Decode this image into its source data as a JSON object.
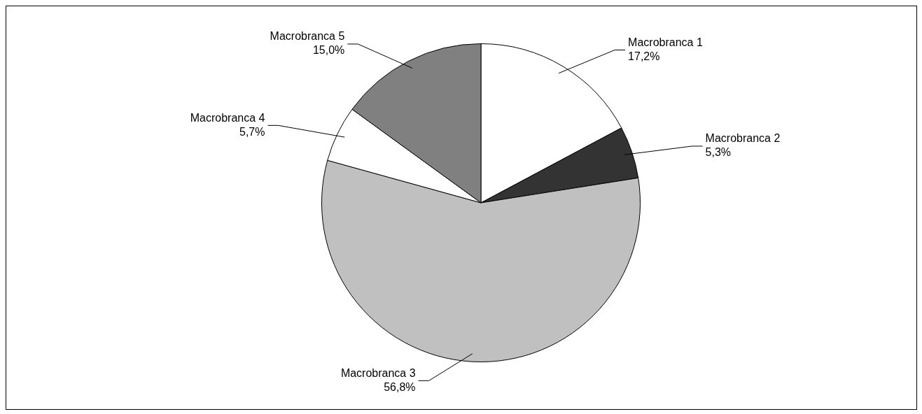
{
  "chart_data": {
    "type": "pie",
    "categories": [
      "Macrobranca 1",
      "Macrobranca 2",
      "Macrobranca 3",
      "Macrobranca 4",
      "Macrobranca 5"
    ],
    "values": [
      17.2,
      5.3,
      56.8,
      5.7,
      15.0
    ],
    "colors": [
      "#ffffff",
      "#333333",
      "#c0c0c0",
      "#ffffff",
      "#808080"
    ],
    "value_labels": [
      "17,2%",
      "5,3%",
      "56,8%",
      "5,7%",
      "15,0%"
    ],
    "legend": false
  }
}
